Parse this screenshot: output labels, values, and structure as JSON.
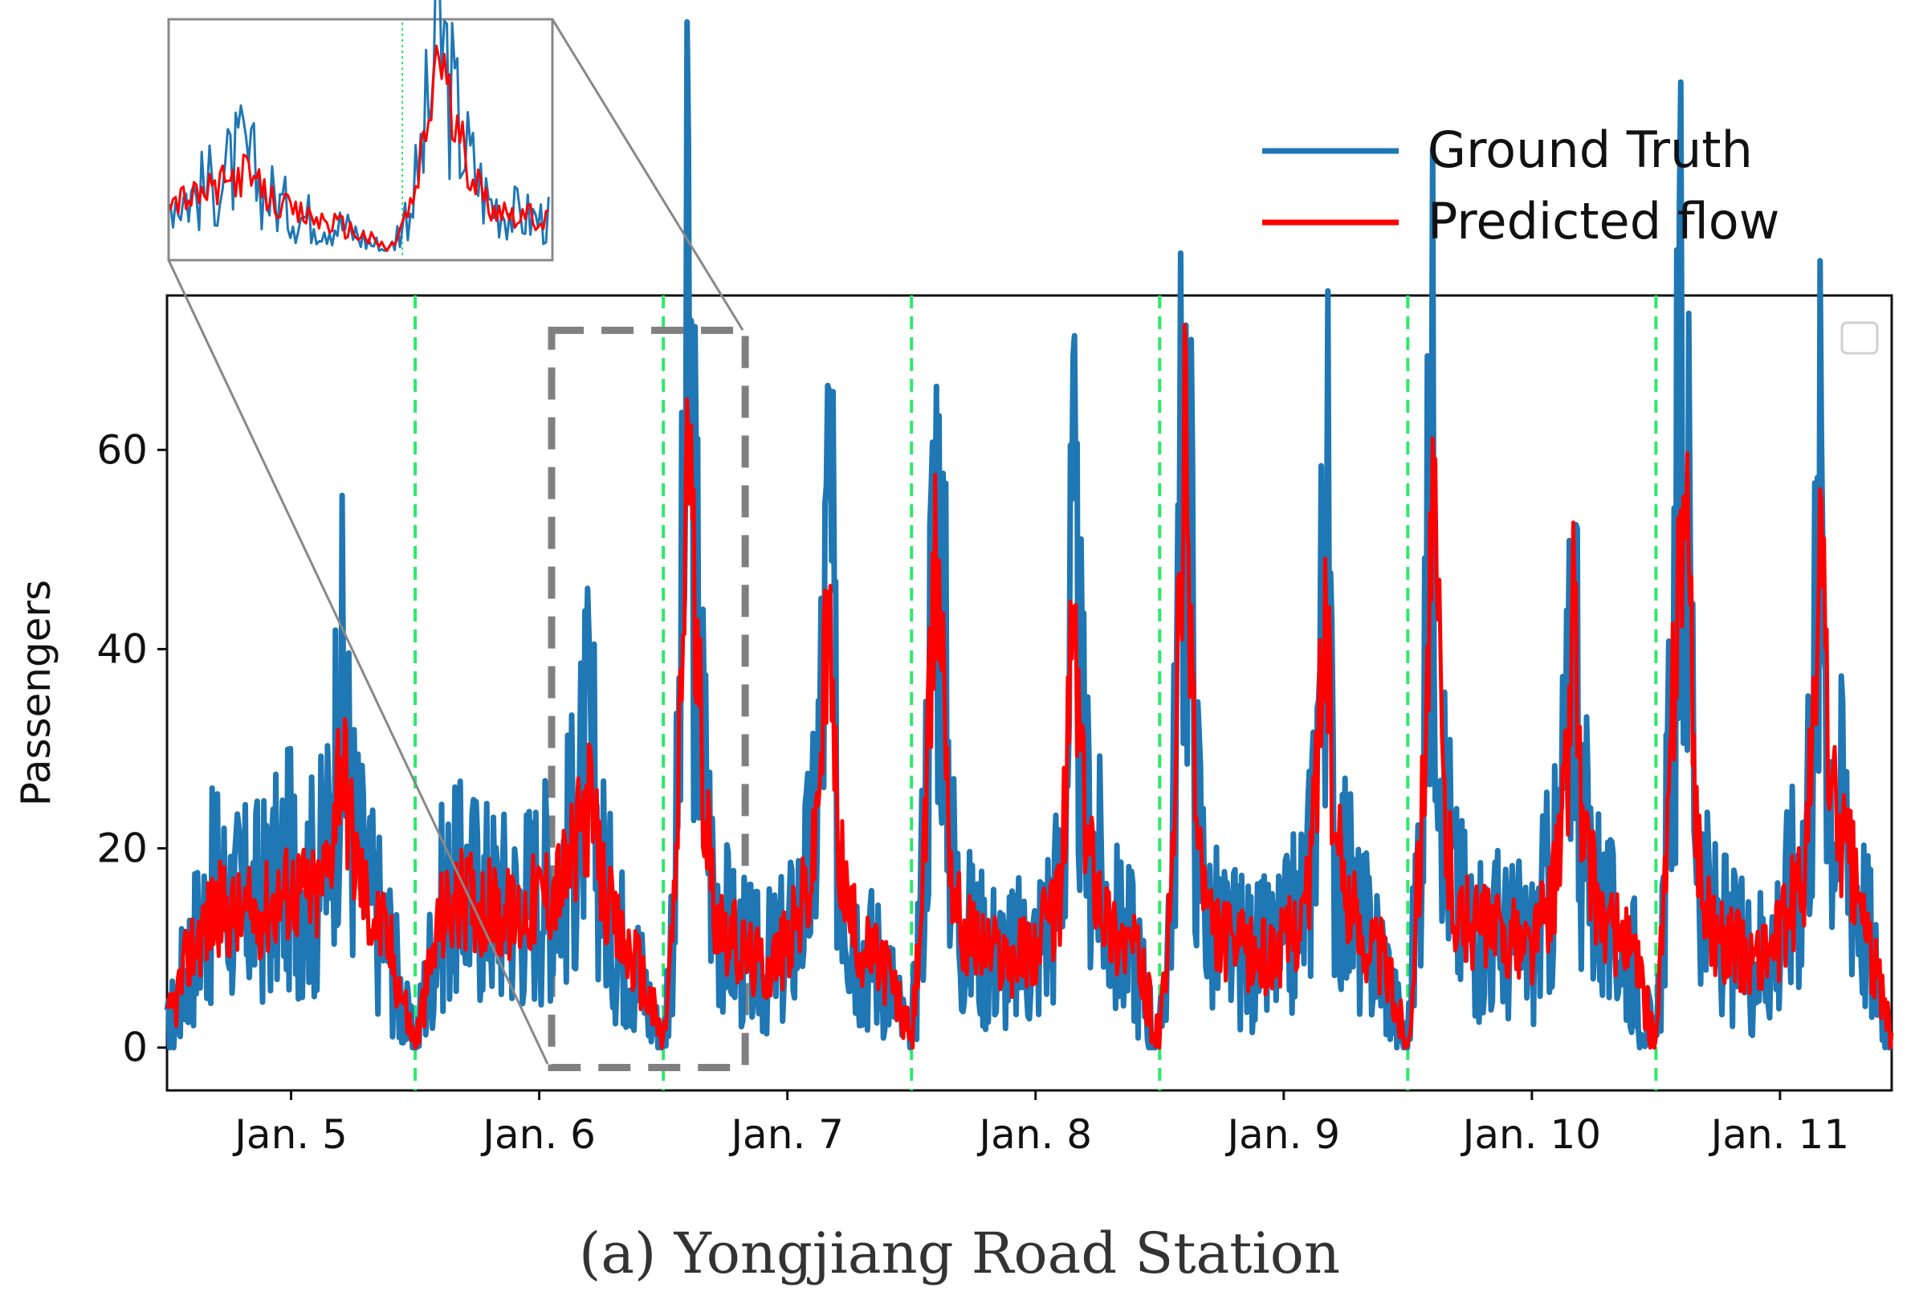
{
  "chart_data": {
    "type": "line",
    "title": "",
    "caption": "(a) Yongjiang Road Station",
    "xlabel": "",
    "ylabel": "Passengers",
    "xlim": [
      4.5,
      11.45
    ],
    "ylim": [
      -4.3,
      75.5
    ],
    "x_ticks": [
      5,
      6,
      7,
      8,
      9,
      10,
      11
    ],
    "x_tick_labels": [
      "Jan. 5",
      "Jan. 6",
      "Jan. 7",
      "Jan. 8",
      "Jan. 9",
      "Jan. 10",
      "Jan. 11"
    ],
    "y_ticks": [
      0,
      20,
      40,
      60
    ],
    "y_tick_labels": [
      "0",
      "20",
      "40",
      "60"
    ],
    "grid": false,
    "day_separators": [
      5.5,
      6.5,
      7.5,
      8.5,
      9.5,
      10.5
    ],
    "zoom_region": {
      "x": [
        6.05,
        6.83
      ],
      "y": [
        -2,
        72
      ]
    },
    "legend": {
      "placement": "top-right, outside axes",
      "entries": [
        "Ground Truth",
        "Predicted flow"
      ]
    },
    "series": [
      {
        "name": "Ground Truth",
        "color": "#1f77b4",
        "description": "approximate daily profile reconstructed from figure",
        "x": [
          4.5,
          4.6,
          4.7,
          4.8,
          4.9,
          5.0,
          5.1,
          5.15,
          5.2,
          5.25,
          5.3,
          5.4,
          5.48,
          5.5,
          5.6,
          5.7,
          5.8,
          5.9,
          6.0,
          6.1,
          6.15,
          6.2,
          6.25,
          6.3,
          6.4,
          6.48,
          6.5,
          6.55,
          6.58,
          6.6,
          6.63,
          6.66,
          6.7,
          6.75,
          6.8,
          6.9,
          7.0,
          7.1,
          7.15,
          7.17,
          7.2,
          7.25,
          7.3,
          7.4,
          7.48,
          7.5,
          7.55,
          7.6,
          7.63,
          7.66,
          7.7,
          7.8,
          7.9,
          8.0,
          8.1,
          8.13,
          8.15,
          8.2,
          8.3,
          8.4,
          8.48,
          8.5,
          8.55,
          8.6,
          8.62,
          8.65,
          8.7,
          8.8,
          8.9,
          9.0,
          9.1,
          9.15,
          9.17,
          9.2,
          9.3,
          9.4,
          9.48,
          9.5,
          9.55,
          9.6,
          9.62,
          9.65,
          9.7,
          9.8,
          9.9,
          10.0,
          10.1,
          10.15,
          10.17,
          10.2,
          10.3,
          10.4,
          10.48,
          10.5,
          10.55,
          10.6,
          10.63,
          10.66,
          10.7,
          10.8,
          10.9,
          11.0,
          11.1,
          11.15,
          11.17,
          11.2,
          11.3,
          11.4,
          11.45
        ],
        "y": [
          1,
          10,
          16,
          14,
          15,
          18,
          16,
          20,
          36,
          22,
          16,
          10,
          1,
          0,
          14,
          16,
          15,
          14,
          16,
          18,
          22,
          30,
          18,
          12,
          8,
          1,
          0,
          18,
          45,
          72,
          46,
          30,
          16,
          12,
          10,
          8,
          10,
          18,
          40,
          55,
          24,
          14,
          10,
          8,
          1,
          0,
          20,
          58,
          42,
          20,
          12,
          10,
          9,
          10,
          16,
          32,
          48,
          24,
          12,
          10,
          1,
          0,
          18,
          65,
          55,
          24,
          12,
          10,
          9,
          10,
          16,
          40,
          58,
          22,
          12,
          9,
          1,
          0,
          22,
          60,
          48,
          24,
          14,
          12,
          11,
          10,
          18,
          32,
          52,
          22,
          12,
          10,
          1,
          0,
          24,
          63,
          52,
          26,
          14,
          10,
          9,
          12,
          20,
          44,
          58,
          28,
          18,
          6,
          1
        ]
      },
      {
        "name": "Predicted flow",
        "color": "#ff0000",
        "description": "approximate daily profile reconstructed from figure",
        "x": [
          4.5,
          4.6,
          4.7,
          4.8,
          4.9,
          5.0,
          5.1,
          5.15,
          5.2,
          5.25,
          5.3,
          5.4,
          5.48,
          5.5,
          5.6,
          5.7,
          5.8,
          5.9,
          6.0,
          6.1,
          6.15,
          6.2,
          6.25,
          6.3,
          6.4,
          6.48,
          6.5,
          6.55,
          6.58,
          6.6,
          6.63,
          6.66,
          6.7,
          6.75,
          6.8,
          6.9,
          7.0,
          7.1,
          7.15,
          7.17,
          7.2,
          7.25,
          7.3,
          7.4,
          7.48,
          7.5,
          7.55,
          7.6,
          7.63,
          7.66,
          7.7,
          7.8,
          7.9,
          8.0,
          8.1,
          8.13,
          8.15,
          8.2,
          8.3,
          8.4,
          8.48,
          8.5,
          8.55,
          8.6,
          8.62,
          8.65,
          8.7,
          8.8,
          8.9,
          9.0,
          9.1,
          9.15,
          9.17,
          9.2,
          9.3,
          9.4,
          9.48,
          9.5,
          9.55,
          9.6,
          9.62,
          9.65,
          9.7,
          9.8,
          9.9,
          10.0,
          10.1,
          10.15,
          10.17,
          10.2,
          10.3,
          10.4,
          10.48,
          10.5,
          10.55,
          10.6,
          10.63,
          10.66,
          10.7,
          10.8,
          10.9,
          11.0,
          11.1,
          11.15,
          11.17,
          11.2,
          11.3,
          11.4,
          11.45
        ],
        "y": [
          2,
          10,
          14,
          13,
          14,
          16,
          15,
          18,
          31,
          20,
          15,
          10,
          2,
          0,
          13,
          15,
          14,
          13,
          15,
          17,
          20,
          25,
          17,
          12,
          8,
          2,
          0,
          16,
          42,
          67,
          40,
          28,
          15,
          12,
          10,
          8,
          10,
          17,
          36,
          43,
          22,
          13,
          10,
          8,
          2,
          0,
          18,
          50,
          38,
          18,
          12,
          10,
          9,
          10,
          15,
          30,
          44,
          22,
          12,
          10,
          2,
          0,
          16,
          61,
          48,
          22,
          12,
          10,
          9,
          10,
          15,
          36,
          46,
          21,
          12,
          9,
          2,
          0,
          20,
          53,
          44,
          22,
          13,
          12,
          11,
          10,
          17,
          30,
          50,
          21,
          12,
          10,
          2,
          0,
          22,
          55,
          48,
          24,
          13,
          10,
          9,
          11,
          18,
          38,
          55,
          26,
          17,
          6,
          1
        ]
      }
    ]
  }
}
